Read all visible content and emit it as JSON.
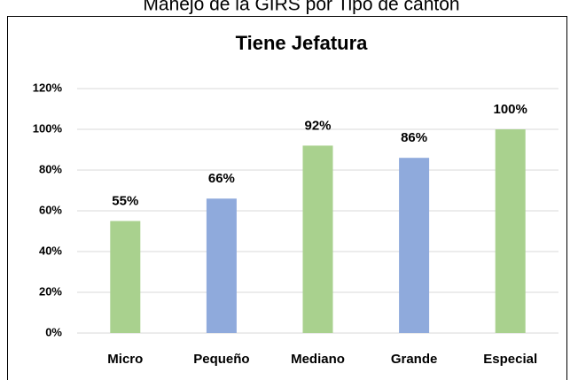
{
  "header": {
    "title": "Manejo de la GIRS por Tipo de cantón"
  },
  "chart_data": {
    "type": "bar",
    "title": "Tiene Jefatura",
    "categories": [
      "Micro",
      "Pequeño",
      "Mediano",
      "Grande",
      "Especial"
    ],
    "values": [
      55,
      66,
      92,
      86,
      100
    ],
    "value_labels": [
      "55%",
      "66%",
      "92%",
      "86%",
      "100%"
    ],
    "colors": [
      "#a9d18e",
      "#8faadc",
      "#a9d18e",
      "#8faadc",
      "#a9d18e"
    ],
    "ylim": [
      0,
      120
    ],
    "yticks": [
      {
        "value": 0,
        "label": "0%"
      },
      {
        "value": 20,
        "label": "20%"
      },
      {
        "value": 40,
        "label": "40%"
      },
      {
        "value": 60,
        "label": "60%"
      },
      {
        "value": 80,
        "label": "80%"
      },
      {
        "value": 100,
        "label": "100%"
      },
      {
        "value": 120,
        "label": "120%"
      }
    ],
    "grid": true
  }
}
